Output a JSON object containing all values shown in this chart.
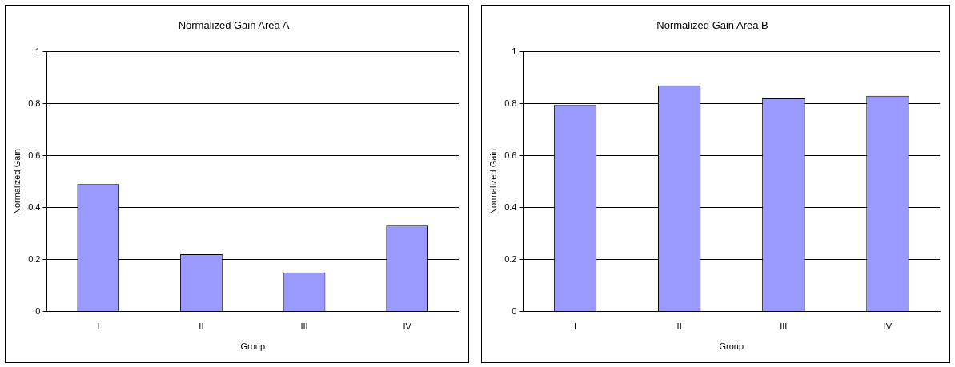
{
  "chart_data": [
    {
      "type": "bar",
      "title": "Normalized Gain Area A",
      "xlabel": "Group",
      "ylabel": "Normalized Gain",
      "categories": [
        "I",
        "II",
        "III",
        "IV"
      ],
      "values": [
        0.49,
        0.22,
        0.15,
        0.33
      ],
      "color": "#9999ff",
      "ylim": [
        0,
        1
      ],
      "yticks": [
        0,
        0.2,
        0.4,
        0.6,
        0.8,
        1
      ],
      "grid": "y",
      "legend": false
    },
    {
      "type": "bar",
      "title": "Normalized Gain Area B",
      "xlabel": "Group",
      "ylabel": "Normalized Gain",
      "categories": [
        "I",
        "II",
        "III",
        "IV"
      ],
      "values": [
        0.795,
        0.87,
        0.82,
        0.83
      ],
      "color": "#9999ff",
      "ylim": [
        0,
        1
      ],
      "yticks": [
        0,
        0.2,
        0.4,
        0.6,
        0.8,
        1
      ],
      "grid": "y",
      "legend": false
    }
  ]
}
